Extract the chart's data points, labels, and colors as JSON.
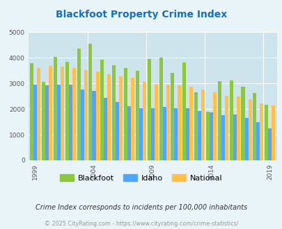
{
  "title": "Blackfoot Property Crime Index",
  "years": [
    1999,
    2000,
    2001,
    2002,
    2003,
    2004,
    2005,
    2006,
    2007,
    2008,
    2009,
    2010,
    2011,
    2012,
    2013,
    2014,
    2015,
    2016,
    2017,
    2018,
    2019
  ],
  "blackfoot": [
    3800,
    3050,
    4030,
    3850,
    4350,
    4550,
    3920,
    3700,
    3600,
    3490,
    3950,
    4010,
    3420,
    3810,
    2650,
    1900,
    3080,
    3100,
    2870,
    2620,
    2170
  ],
  "idaho": [
    2950,
    2920,
    2950,
    2950,
    2760,
    2700,
    2430,
    2280,
    2120,
    2030,
    2020,
    2090,
    2020,
    2020,
    1910,
    1880,
    1770,
    1790,
    1640,
    1480,
    1240
  ],
  "national": [
    3600,
    3680,
    3660,
    3600,
    3510,
    3470,
    3360,
    3270,
    3220,
    3060,
    2980,
    2950,
    2920,
    2880,
    2750,
    2640,
    2510,
    2480,
    2370,
    2220,
    2130
  ],
  "blackfoot_color": "#8dc63f",
  "idaho_color": "#4da6ff",
  "national_color": "#ffc04c",
  "bg_color": "#e8f4f8",
  "plot_bg": "#cde4ed",
  "title_color": "#1a6fba",
  "tick_label_color": "#555555",
  "subtitle": "Crime Index corresponds to incidents per 100,000 inhabitants",
  "footer": "© 2025 CityRating.com - https://www.cityrating.com/crime-statistics/",
  "ylim": [
    0,
    5000
  ],
  "yticks": [
    0,
    1000,
    2000,
    3000,
    4000,
    5000
  ],
  "xtick_years": [
    1999,
    2004,
    2009,
    2014,
    2019
  ],
  "bar_width": 0.3,
  "figsize": [
    4.06,
    3.3
  ],
  "dpi": 100
}
